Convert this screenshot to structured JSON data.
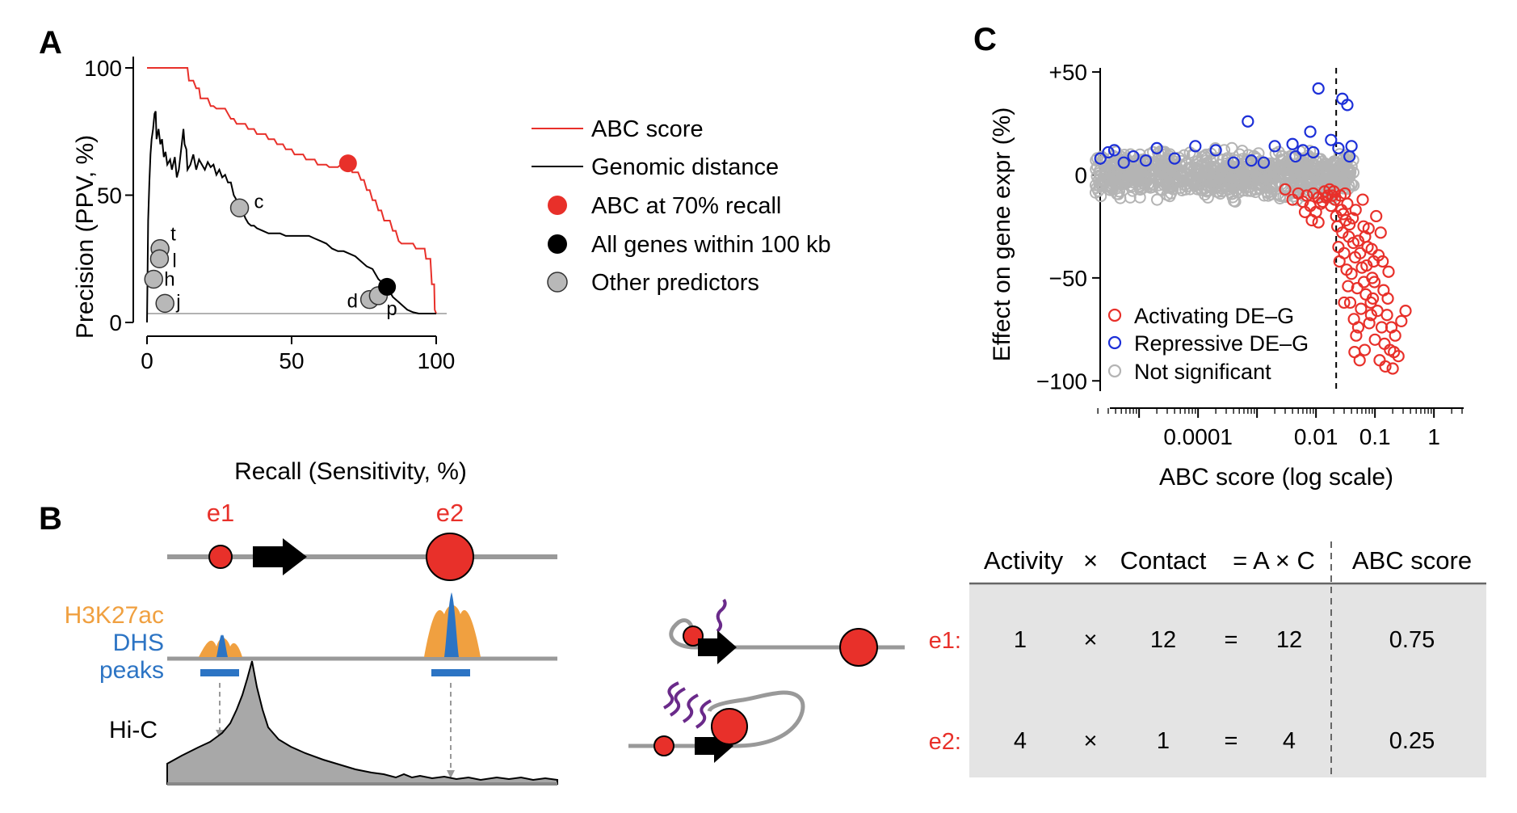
{
  "panels": {
    "a": "A",
    "b": "B",
    "c": "C"
  },
  "chart_data": [
    {
      "panel": "A",
      "type": "line",
      "xlabel": "Recall (Sensitivity, %)",
      "ylabel": "Precision (PPV, %)",
      "xlim": [
        0,
        100
      ],
      "ylim": [
        0,
        100
      ],
      "xticks": [
        "0",
        "50",
        "100"
      ],
      "yticks": [
        "0",
        "50",
        "100"
      ],
      "baseline": 3.5,
      "legend": {
        "position": "top-right",
        "entries": [
          "ABC score",
          "Genomic distance",
          "ABC at 70% recall",
          "All genes within 100 kb",
          "Other predictors"
        ]
      },
      "colors": {
        "abc": "#e8302a",
        "distance": "#000000",
        "other": "#b8b8b8"
      },
      "series": [
        {
          "name": "ABC score",
          "points": [
            [
              0,
              100
            ],
            [
              14,
              100
            ],
            [
              14.5,
              95
            ],
            [
              16,
              95
            ],
            [
              17,
              92
            ],
            [
              18,
              92
            ],
            [
              18.5,
              88
            ],
            [
              21,
              88
            ],
            [
              22,
              85
            ],
            [
              23,
              85
            ],
            [
              24,
              84
            ],
            [
              27,
              84
            ],
            [
              28,
              82
            ],
            [
              29,
              80
            ],
            [
              30,
              80
            ],
            [
              31,
              78
            ],
            [
              34,
              78
            ],
            [
              35,
              76
            ],
            [
              37,
              76
            ],
            [
              38,
              74
            ],
            [
              41,
              74
            ],
            [
              42,
              72
            ],
            [
              44,
              72
            ],
            [
              45,
              70
            ],
            [
              47,
              70
            ],
            [
              48,
              68
            ],
            [
              50,
              68
            ],
            [
              51,
              66
            ],
            [
              54,
              66
            ],
            [
              55,
              64
            ],
            [
              58,
              64
            ],
            [
              59,
              62
            ],
            [
              62,
              62
            ],
            [
              63,
              61
            ],
            [
              66,
              61
            ],
            [
              67,
              62
            ],
            [
              70,
              62
            ],
            [
              71,
              59
            ],
            [
              73,
              59
            ],
            [
              74,
              56
            ],
            [
              75,
              56
            ],
            [
              76,
              52
            ],
            [
              77,
              52
            ],
            [
              78,
              48
            ],
            [
              79,
              48
            ],
            [
              80,
              44
            ],
            [
              81,
              44
            ],
            [
              82,
              40
            ],
            [
              84,
              40
            ],
            [
              85,
              36
            ],
            [
              86,
              36
            ],
            [
              87,
              32
            ],
            [
              88,
              31
            ],
            [
              92,
              31
            ],
            [
              93,
              29
            ],
            [
              96,
              29
            ],
            [
              96.5,
              25
            ],
            [
              98,
              25
            ],
            [
              98.5,
              15
            ],
            [
              99.3,
              15
            ],
            [
              99.5,
              5
            ],
            [
              100,
              3.5
            ]
          ]
        },
        {
          "name": "Genomic distance",
          "points": [
            [
              0,
              0
            ],
            [
              0.4,
              40
            ],
            [
              0.8,
              55
            ],
            [
              1.2,
              66
            ],
            [
              1.6,
              72
            ],
            [
              2.1,
              76
            ],
            [
              2.6,
              82
            ],
            [
              3,
              83
            ],
            [
              3.3,
              72
            ],
            [
              4,
              76
            ],
            [
              4.6,
              70
            ],
            [
              5.2,
              72
            ],
            [
              5.8,
              65
            ],
            [
              6.4,
              67
            ],
            [
              7,
              62
            ],
            [
              8,
              64
            ],
            [
              8.6,
              60
            ],
            [
              9.6,
              65
            ],
            [
              10.3,
              57
            ],
            [
              11,
              60
            ],
            [
              12,
              70
            ],
            [
              12.6,
              76
            ],
            [
              13,
              70
            ],
            [
              13.6,
              68
            ],
            [
              14,
              60
            ],
            [
              15,
              62
            ],
            [
              16,
              66
            ],
            [
              17,
              60
            ],
            [
              18,
              64
            ],
            [
              19,
              62
            ],
            [
              20,
              60
            ],
            [
              21,
              63
            ],
            [
              22,
              61
            ],
            [
              23,
              62
            ],
            [
              24,
              58
            ],
            [
              25,
              60
            ],
            [
              26,
              57
            ],
            [
              27,
              58
            ],
            [
              28,
              55
            ],
            [
              29,
              55
            ],
            [
              30,
              50
            ],
            [
              31,
              48
            ],
            [
              32,
              44
            ],
            [
              33,
              44
            ],
            [
              34,
              41
            ],
            [
              35,
              39
            ],
            [
              36,
              38
            ],
            [
              37,
              38
            ],
            [
              38,
              37
            ],
            [
              40,
              36
            ],
            [
              42,
              35
            ],
            [
              44,
              35
            ],
            [
              46,
              35
            ],
            [
              48,
              34
            ],
            [
              50,
              34
            ],
            [
              53,
              34
            ],
            [
              56,
              34
            ],
            [
              58,
              33
            ],
            [
              60,
              32
            ],
            [
              62,
              31
            ],
            [
              64,
              29
            ],
            [
              66,
              28
            ],
            [
              68,
              28
            ],
            [
              70,
              27
            ],
            [
              72,
              26
            ],
            [
              74,
              24
            ],
            [
              76,
              22
            ],
            [
              78,
              21
            ],
            [
              79,
              19
            ],
            [
              80,
              17
            ],
            [
              81,
              16
            ],
            [
              82,
              15
            ],
            [
              83,
              13
            ],
            [
              84,
              12
            ],
            [
              85,
              10
            ],
            [
              86,
              9
            ],
            [
              87,
              8
            ],
            [
              88,
              7
            ],
            [
              90,
              5
            ],
            [
              92,
              4
            ],
            [
              94,
              3.5
            ],
            [
              100,
              3.5
            ]
          ]
        }
      ],
      "markers": [
        {
          "name": "ABC at 70% recall",
          "x": 69.5,
          "y": 62.5,
          "color": "#e8302a"
        },
        {
          "name": "All genes within 100 kb",
          "x": 83,
          "y": 14,
          "color": "#000000"
        }
      ],
      "other_predictors": [
        {
          "label": "c",
          "x": 32,
          "y": 45
        },
        {
          "label": "t",
          "x": 4.5,
          "y": 29
        },
        {
          "label": "l",
          "x": 4.3,
          "y": 25
        },
        {
          "label": "h",
          "x": 2.3,
          "y": 17
        },
        {
          "label": "j",
          "x": 6.2,
          "y": 7.5
        },
        {
          "label": "d",
          "x": 77,
          "y": 9
        },
        {
          "label": "p",
          "x": 80,
          "y": 10.5
        }
      ]
    },
    {
      "panel": "C",
      "type": "scatter",
      "xlabel": "ABC score (log scale)",
      "ylabel": "Effect on gene expr (%)",
      "xscale": "log",
      "xlim": [
        1.5e-06,
        3
      ],
      "ylim": [
        -105,
        52
      ],
      "xticks": [
        {
          "value": 0.0001,
          "label": "0.0001"
        },
        {
          "value": 0.01,
          "label": "0.01"
        },
        {
          "value": 0.1,
          "label": "0.1"
        },
        {
          "value": 1,
          "label": "1"
        }
      ],
      "yticks": [
        {
          "value": 50,
          "label": "+50"
        },
        {
          "value": 0,
          "label": "0"
        },
        {
          "value": -50,
          "label": "−50"
        },
        {
          "value": -100,
          "label": "−100"
        }
      ],
      "threshold": 0.022,
      "legend": {
        "position": "bottom-left",
        "entries": [
          "Activating DE–G",
          "Repressive DE–G",
          "Not significant"
        ]
      },
      "colors": {
        "activating": "#e8302a",
        "repressive": "#1c2fd8",
        "not_significant": "#b4b4b4"
      },
      "repressive_points": [
        [
          2.2e-06,
          8
        ],
        [
          3e-06,
          11
        ],
        [
          3.8e-06,
          12
        ],
        [
          5.5e-06,
          6
        ],
        [
          8e-06,
          9
        ],
        [
          1.3e-05,
          7
        ],
        [
          2e-05,
          13
        ],
        [
          4e-05,
          8
        ],
        [
          9e-05,
          14
        ],
        [
          0.0002,
          12
        ],
        [
          0.0004,
          6
        ],
        [
          0.0007,
          26
        ],
        [
          0.0008,
          7
        ],
        [
          0.0013,
          6
        ],
        [
          0.002,
          14
        ],
        [
          0.004,
          15
        ],
        [
          0.0045,
          9
        ],
        [
          0.006,
          12
        ],
        [
          0.008,
          21
        ],
        [
          0.009,
          11
        ],
        [
          0.011,
          42
        ],
        [
          0.018,
          17
        ],
        [
          0.024,
          13
        ],
        [
          0.028,
          37
        ],
        [
          0.034,
          34
        ],
        [
          0.037,
          9
        ],
        [
          0.04,
          14
        ]
      ],
      "activating_points": [
        [
          0.003,
          -7
        ],
        [
          0.004,
          -12
        ],
        [
          0.005,
          -9
        ],
        [
          0.006,
          -13
        ],
        [
          0.0065,
          -18
        ],
        [
          0.007,
          -10
        ],
        [
          0.008,
          -15
        ],
        [
          0.009,
          -9
        ],
        [
          0.011,
          -11
        ],
        [
          0.011,
          -23
        ],
        [
          0.013,
          -13
        ],
        [
          0.014,
          -8
        ],
        [
          0.016,
          -10
        ],
        [
          0.018,
          -15
        ],
        [
          0.021,
          -12
        ],
        [
          0.022,
          -20
        ],
        [
          0.023,
          -25
        ],
        [
          0.024,
          -35
        ],
        [
          0.025,
          -42
        ],
        [
          0.026,
          -10
        ],
        [
          0.027,
          -17
        ],
        [
          0.028,
          -28
        ],
        [
          0.03,
          -38
        ],
        [
          0.032,
          -22
        ],
        [
          0.033,
          -46
        ],
        [
          0.034,
          -14
        ],
        [
          0.035,
          -54
        ],
        [
          0.036,
          -30
        ],
        [
          0.038,
          -62
        ],
        [
          0.04,
          -48
        ],
        [
          0.042,
          -21
        ],
        [
          0.044,
          -70
        ],
        [
          0.046,
          -40
        ],
        [
          0.048,
          -78
        ],
        [
          0.05,
          -55
        ],
        [
          0.052,
          -32
        ],
        [
          0.055,
          -90
        ],
        [
          0.058,
          -65
        ],
        [
          0.06,
          -45
        ],
        [
          0.064,
          -25
        ],
        [
          0.067,
          -85
        ],
        [
          0.07,
          -58
        ],
        [
          0.075,
          -35
        ],
        [
          0.08,
          -72
        ],
        [
          0.085,
          -62
        ],
        [
          0.09,
          -50
        ],
        [
          0.095,
          -42
        ],
        [
          0.1,
          -80
        ],
        [
          0.105,
          -20
        ],
        [
          0.11,
          -66
        ],
        [
          0.12,
          -90
        ],
        [
          0.125,
          -28
        ],
        [
          0.13,
          -74
        ],
        [
          0.14,
          -56
        ],
        [
          0.15,
          -93
        ],
        [
          0.16,
          -68
        ],
        [
          0.17,
          -47
        ],
        [
          0.18,
          -85
        ],
        [
          0.2,
          -94
        ],
        [
          0.22,
          -78
        ],
        [
          0.25,
          -88
        ],
        [
          0.28,
          -71
        ],
        [
          0.33,
          -66
        ],
        [
          0.02,
          -8
        ],
        [
          0.019,
          -10
        ],
        [
          0.017,
          -7
        ],
        [
          0.015,
          -11
        ],
        [
          0.012,
          -14
        ],
        [
          0.01,
          -18
        ],
        [
          0.0085,
          -22
        ],
        [
          0.029,
          -19
        ],
        [
          0.031,
          -9
        ],
        [
          0.037,
          -24
        ],
        [
          0.043,
          -33
        ],
        [
          0.047,
          -17
        ],
        [
          0.056,
          -38
        ],
        [
          0.062,
          -12
        ],
        [
          0.068,
          -30
        ],
        [
          0.072,
          -44
        ],
        [
          0.078,
          -26
        ],
        [
          0.088,
          -36
        ],
        [
          0.092,
          -60
        ],
        [
          0.098,
          -52
        ],
        [
          0.115,
          -39
        ],
        [
          0.135,
          -42
        ],
        [
          0.145,
          -82
        ],
        [
          0.165,
          -60
        ],
        [
          0.19,
          -74
        ],
        [
          0.21,
          -86
        ],
        [
          0.03,
          -62
        ],
        [
          0.045,
          -86
        ],
        [
          0.052,
          -74
        ],
        [
          0.065,
          -52
        ],
        [
          0.086,
          -68
        ]
      ]
    }
  ],
  "panel_b": {
    "enhancers": [
      "e1",
      "e2"
    ],
    "tracks": {
      "h3k27ac": "H3K27ac",
      "dhs": "DHS",
      "peaks": "peaks",
      "hic": "Hi-C"
    },
    "colors": {
      "h3k27ac": "#f0a040",
      "dhs": "#2c74c4",
      "enhancer": "#e8302a"
    },
    "table": {
      "headers": {
        "activity": "Activity",
        "times": "×",
        "contact": "Contact",
        "equals_ac": "= A × C",
        "abc": "ABC score"
      },
      "rows": [
        {
          "label": "e1:",
          "activity": "1",
          "times": "×",
          "contact": "12",
          "equals": "=",
          "product": "12",
          "abc": "0.75"
        },
        {
          "label": "e2:",
          "activity": "4",
          "times": "×",
          "contact": "1",
          "equals": "=",
          "product": "4",
          "abc": "0.25"
        }
      ]
    }
  }
}
